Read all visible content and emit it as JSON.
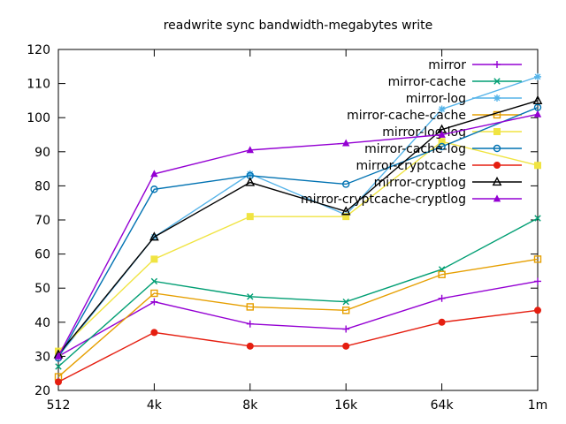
{
  "chart_data": {
    "type": "line",
    "title": "readwrite sync bandwidth-megabytes write",
    "categories": [
      "512",
      "4k",
      "8k",
      "16k",
      "64k",
      "1m"
    ],
    "xlabel": "",
    "ylabel": "",
    "ylim": [
      20,
      120
    ],
    "ytick_step": 10,
    "ytick_labels": [
      "20",
      "30",
      "40",
      "50",
      "60",
      "70",
      "80",
      "90",
      "100",
      "110",
      "120"
    ],
    "grid": false,
    "legend_position": "top-right-inside",
    "axis_color": "#000000",
    "background_color": "#ffffff",
    "series": [
      {
        "name": "mirror",
        "color": "#9400d3",
        "marker": "plus",
        "values": [
          30,
          46,
          39.5,
          38,
          47,
          52
        ]
      },
      {
        "name": "mirror-cache",
        "color": "#009e73",
        "marker": "x",
        "values": [
          27,
          52,
          47.5,
          46,
          55.5,
          70.5
        ]
      },
      {
        "name": "mirror-log",
        "color": "#56b4e9",
        "marker": "asterisk",
        "values": [
          30,
          65,
          83.5,
          71.5,
          102.5,
          112
        ]
      },
      {
        "name": "mirror-cache-cache",
        "color": "#e69f00",
        "marker": "square-open",
        "values": [
          24,
          48.5,
          44.5,
          43.5,
          54,
          58.5
        ]
      },
      {
        "name": "mirror-log-log",
        "color": "#f0e442",
        "marker": "square-filled",
        "values": [
          31.5,
          58.5,
          71,
          71,
          93,
          86
        ]
      },
      {
        "name": "mirror-cache-log",
        "color": "#0072b2",
        "marker": "circle-open",
        "values": [
          29.5,
          79,
          83,
          80.5,
          91.5,
          103
        ]
      },
      {
        "name": "mirror-cryptcache",
        "color": "#e51e10",
        "marker": "circle-filled",
        "values": [
          22.5,
          37,
          33,
          33,
          40,
          43.5
        ]
      },
      {
        "name": "mirror-cryptlog",
        "color": "#000000",
        "marker": "triangle-open",
        "values": [
          30.5,
          65,
          81,
          72.5,
          96.5,
          105
        ]
      },
      {
        "name": "mirror-cryptcache-cryptlog",
        "color": "#9400d3",
        "marker": "triangle-filled",
        "values": [
          30,
          83.5,
          90.5,
          92.5,
          95,
          101
        ]
      }
    ]
  }
}
